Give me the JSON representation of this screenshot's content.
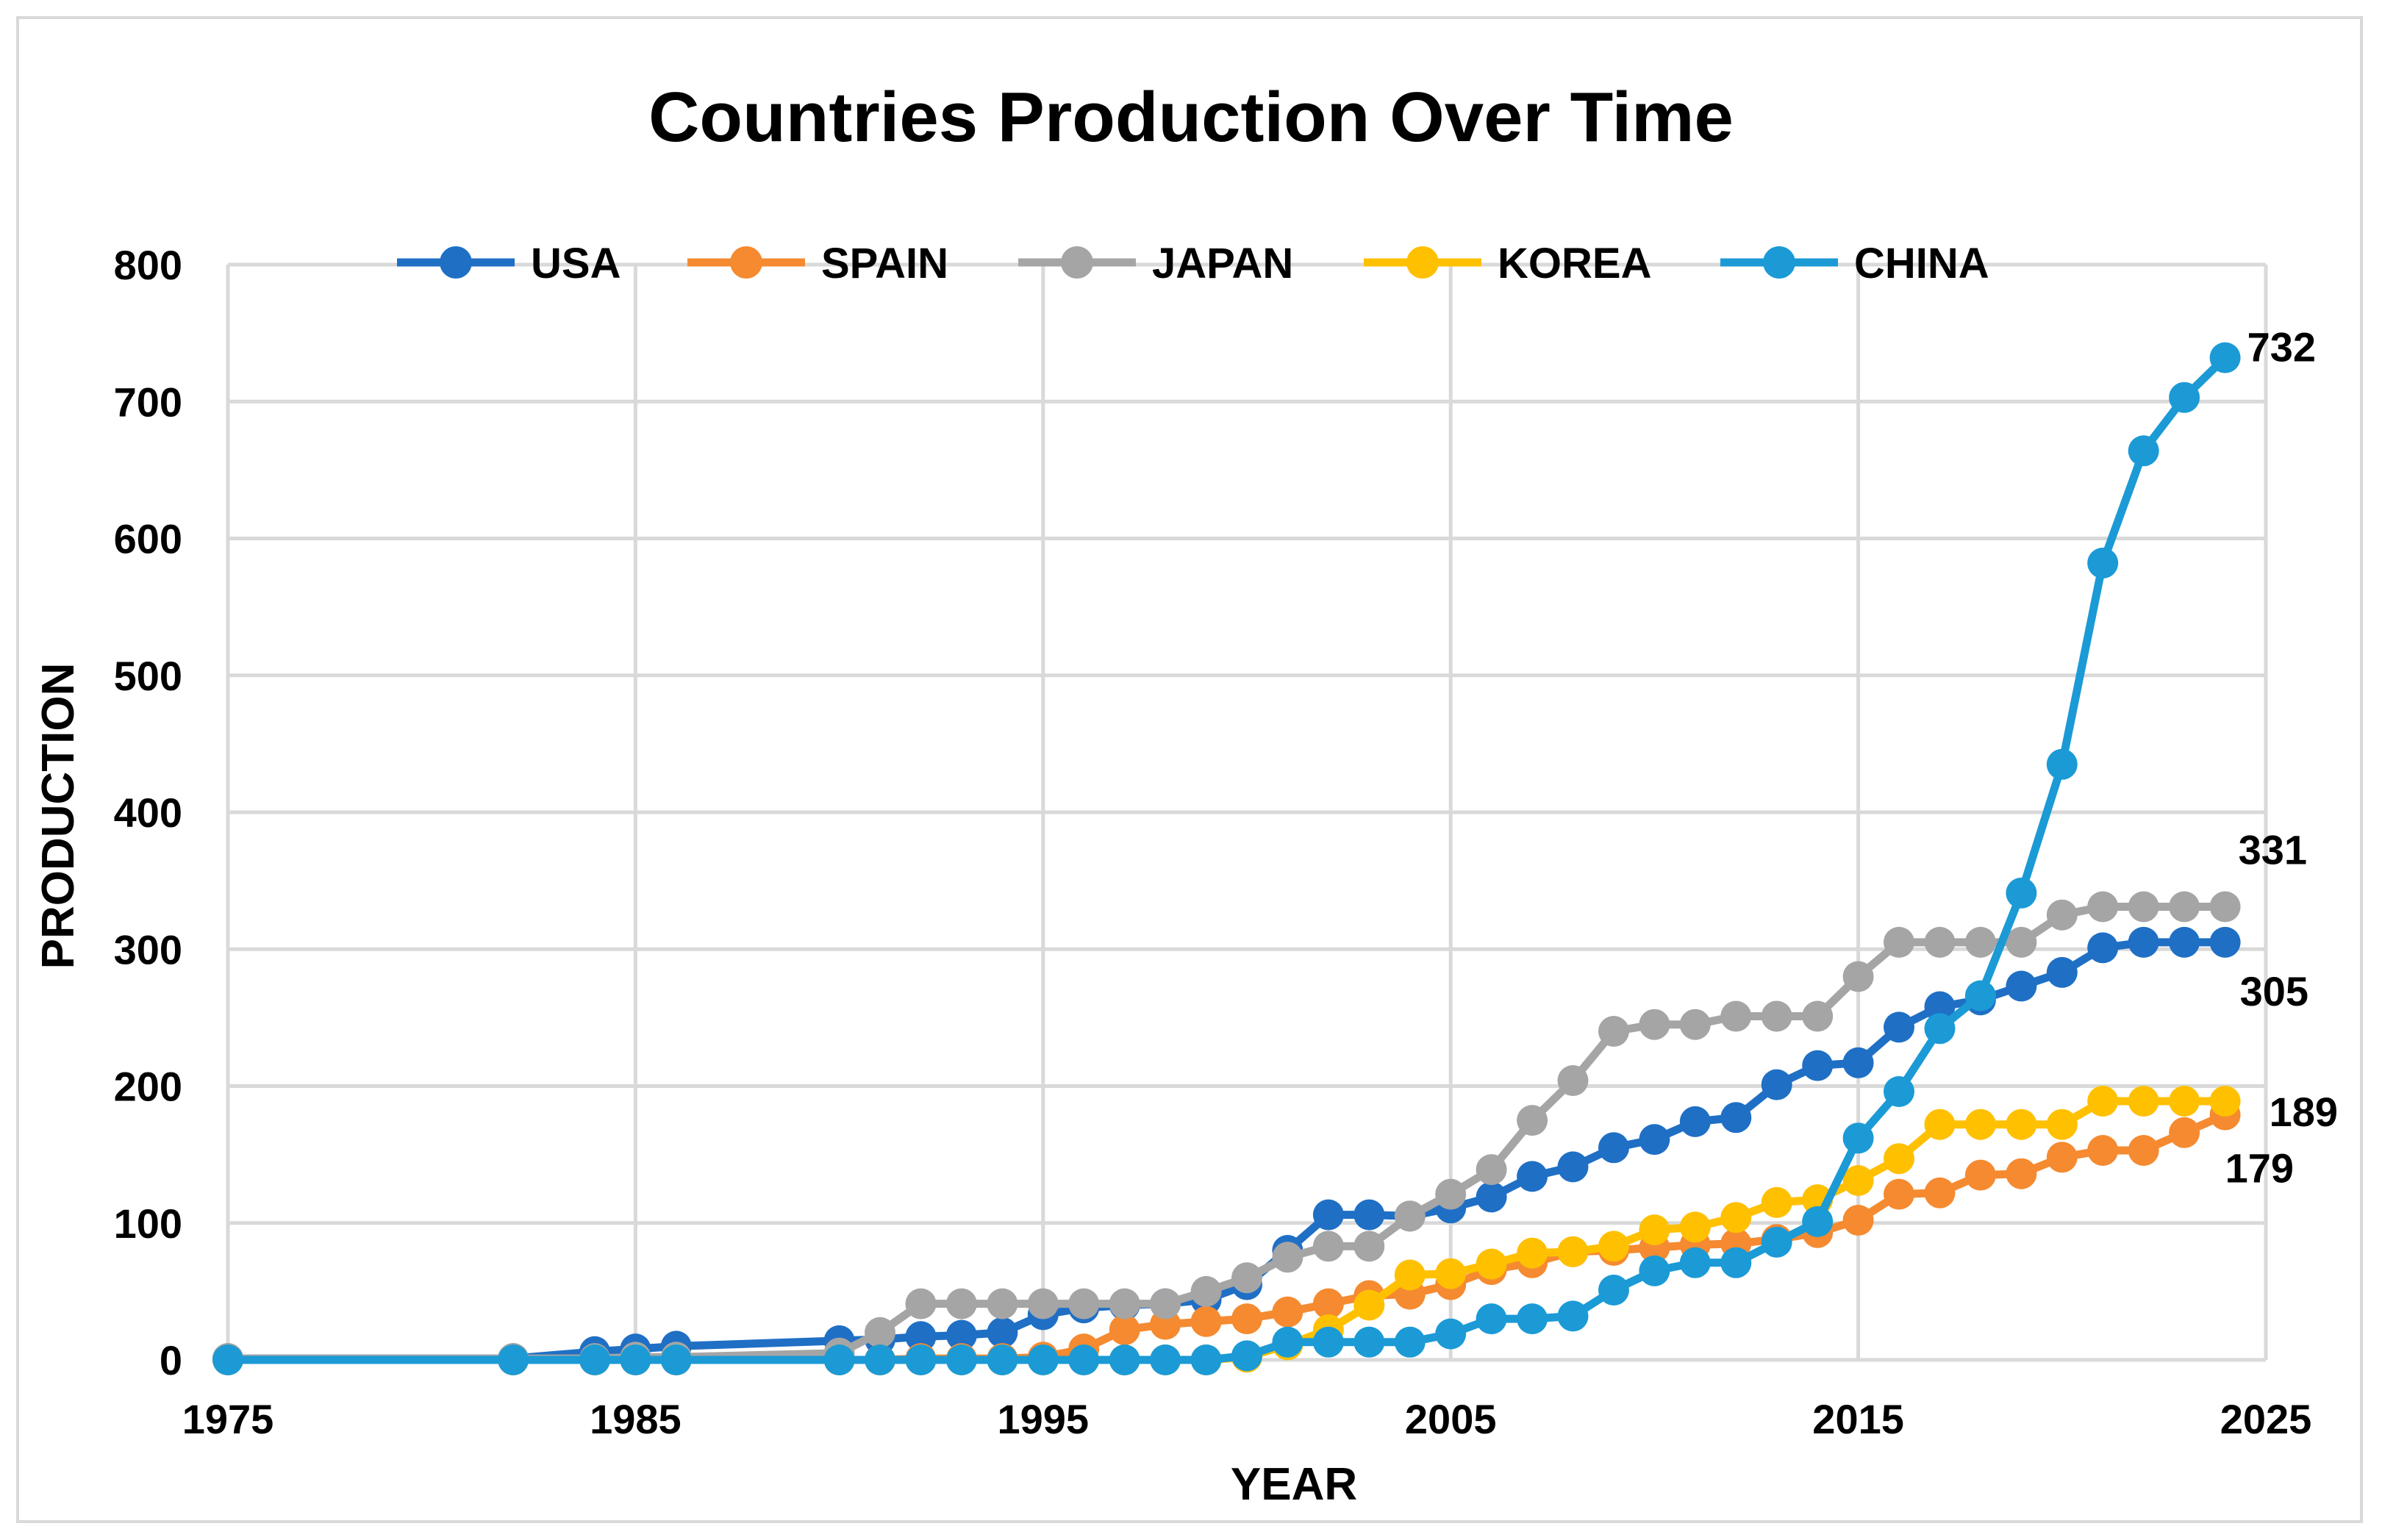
{
  "chart_data": {
    "type": "line",
    "title": "Countries Production Over Time",
    "xlabel": "YEAR",
    "ylabel": "PRODUCTION",
    "xlim": [
      1975,
      2025
    ],
    "ylim": [
      0,
      800
    ],
    "xticks": [
      "1975",
      "1985",
      "1995",
      "2005",
      "2015",
      "2025"
    ],
    "yticks": [
      "0",
      "100",
      "200",
      "300",
      "400",
      "500",
      "600",
      "700",
      "800"
    ],
    "grid": true,
    "legend_position": "top",
    "series": [
      {
        "name": "USA",
        "color": "#1f6fc5",
        "x": [
          1975,
          1982,
          1984,
          1985,
          1986,
          1990,
          1991,
          1992,
          1993,
          1994,
          1995,
          1996,
          1997,
          1998,
          1999,
          2000,
          2001,
          2002,
          2003,
          2004,
          2005,
          2006,
          2007,
          2008,
          2009,
          2010,
          2011,
          2012,
          2013,
          2014,
          2015,
          2016,
          2017,
          2018,
          2019,
          2020,
          2021,
          2022,
          2023,
          2024
        ],
        "y": [
          1,
          1,
          6,
          8,
          10,
          14,
          15,
          17,
          18,
          20,
          33,
          38,
          40,
          41,
          44,
          55,
          80,
          106,
          106,
          105,
          111,
          119,
          134,
          141,
          155,
          161,
          174,
          177,
          201,
          215,
          217,
          243,
          258,
          263,
          273,
          283,
          301,
          305,
          305,
          305
        ],
        "end_label": "305"
      },
      {
        "name": "SPAIN",
        "color": "#f58a30",
        "x": [
          1975,
          1982,
          1984,
          1985,
          1986,
          1990,
          1991,
          1992,
          1993,
          1994,
          1995,
          1996,
          1997,
          1998,
          1999,
          2000,
          2001,
          2002,
          2003,
          2004,
          2005,
          2006,
          2007,
          2008,
          2009,
          2010,
          2011,
          2012,
          2013,
          2014,
          2015,
          2016,
          2017,
          2018,
          2019,
          2020,
          2021,
          2022,
          2023,
          2024
        ],
        "y": [
          0,
          0,
          0,
          0,
          0,
          0,
          0,
          1,
          1,
          1,
          2,
          8,
          22,
          26,
          28,
          30,
          35,
          41,
          47,
          48,
          55,
          66,
          71,
          79,
          80,
          82,
          84,
          85,
          88,
          93,
          102,
          121,
          122,
          135,
          136,
          148,
          153,
          153,
          166,
          179
        ],
        "end_label": "179"
      },
      {
        "name": "JAPAN",
        "color": "#a5a5a5",
        "x": [
          1975,
          1982,
          1984,
          1985,
          1986,
          1990,
          1991,
          1992,
          1993,
          1994,
          1995,
          1996,
          1997,
          1998,
          1999,
          2000,
          2001,
          2002,
          2003,
          2004,
          2005,
          2006,
          2007,
          2008,
          2009,
          2010,
          2011,
          2012,
          2013,
          2014,
          2015,
          2016,
          2017,
          2018,
          2019,
          2020,
          2021,
          2022,
          2023,
          2024
        ],
        "y": [
          1,
          1,
          1,
          2,
          2,
          5,
          20,
          41,
          41,
          41,
          41,
          41,
          41,
          41,
          50,
          60,
          75,
          83,
          83,
          105,
          121,
          139,
          175,
          204,
          240,
          245,
          245,
          251,
          251,
          251,
          280,
          305,
          305,
          305,
          305,
          325,
          331,
          331,
          331,
          331
        ],
        "end_label": "331"
      },
      {
        "name": "KOREA",
        "color": "#ffc000",
        "x": [
          1975,
          1982,
          1984,
          1985,
          1986,
          1990,
          1991,
          1992,
          1993,
          1994,
          1995,
          1996,
          1997,
          1998,
          1999,
          2000,
          2001,
          2002,
          2003,
          2004,
          2005,
          2006,
          2007,
          2008,
          2009,
          2010,
          2011,
          2012,
          2013,
          2014,
          2015,
          2016,
          2017,
          2018,
          2019,
          2020,
          2021,
          2022,
          2023,
          2024
        ],
        "y": [
          0,
          0,
          0,
          0,
          0,
          0,
          0,
          0,
          0,
          0,
          0,
          0,
          0,
          0,
          0,
          2,
          11,
          22,
          40,
          62,
          63,
          70,
          78,
          79,
          83,
          95,
          97,
          104,
          115,
          117,
          131,
          147,
          172,
          172,
          172,
          172,
          189,
          189,
          189,
          189
        ],
        "end_label": "189"
      },
      {
        "name": "CHINA",
        "color": "#1b9ad6",
        "x": [
          1975,
          1982,
          1984,
          1985,
          1986,
          1990,
          1991,
          1992,
          1993,
          1994,
          1995,
          1996,
          1997,
          1998,
          1999,
          2000,
          2001,
          2002,
          2003,
          2004,
          2005,
          2006,
          2007,
          2008,
          2009,
          2010,
          2011,
          2012,
          2013,
          2014,
          2015,
          2016,
          2017,
          2018,
          2019,
          2020,
          2021,
          2022,
          2023,
          2024
        ],
        "y": [
          0,
          0,
          0,
          0,
          0,
          0,
          0,
          0,
          0,
          0,
          0,
          0,
          0,
          0,
          0,
          3,
          13,
          13,
          13,
          13,
          19,
          30,
          30,
          32,
          51,
          65,
          71,
          71,
          86,
          101,
          162,
          196,
          242,
          266,
          341,
          435,
          582,
          664,
          703,
          732
        ],
        "end_label": "732"
      }
    ]
  }
}
